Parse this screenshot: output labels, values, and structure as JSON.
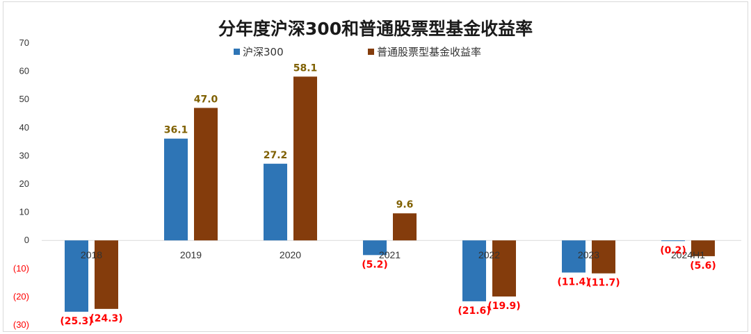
{
  "chart_data": {
    "type": "bar",
    "title": "分年度沪深300和普通股票型基金收益率",
    "categories": [
      "2018",
      "2019",
      "2020",
      "2021",
      "2022",
      "2023",
      "2024H1"
    ],
    "series": [
      {
        "name": "沪深300",
        "color": "#2e75b6",
        "values": [
          -25.3,
          36.1,
          27.2,
          -5.2,
          -21.6,
          -11.4,
          -0.2
        ],
        "labels": [
          "(25.3)",
          "36.1",
          "27.2",
          "(5.2)",
          "(21.6)",
          "(11.4)",
          "(0.2)"
        ]
      },
      {
        "name": "普通股票型基金收益率",
        "color": "#843c0c",
        "values": [
          -24.3,
          47.0,
          58.1,
          9.6,
          -19.9,
          -11.7,
          -5.6
        ],
        "labels": [
          "(24.3)",
          "47.0",
          "58.1",
          "9.6",
          "(19.9)",
          "(11.7)",
          "(5.6)"
        ]
      }
    ],
    "ylim": [
      -30,
      70
    ],
    "yticks": [
      70,
      60,
      50,
      40,
      30,
      20,
      10,
      0,
      -10,
      -20,
      -30
    ],
    "ytick_labels": [
      "70",
      "60",
      "50",
      "40",
      "30",
      "20",
      "10",
      "0",
      "(10)",
      "(20)",
      "(30)"
    ],
    "legend_position": "top-center",
    "grid": false,
    "colors": {
      "positive_label": "#7f6000",
      "negative_label": "#ff0000",
      "negative_tick": "#ff0000",
      "tick": "#333333"
    }
  }
}
